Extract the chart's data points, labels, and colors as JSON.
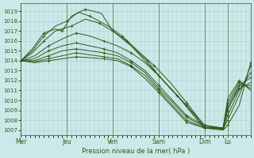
{
  "bg_color": "#cce8e8",
  "grid_color": "#aacfcf",
  "line_color": "#2d5a1b",
  "marker_color": "#2d5a1b",
  "xlabel": "Pression niveau de la mer( hPa )",
  "xlabel_color": "#2d5a1b",
  "tick_color": "#2d5a1b",
  "ylim": [
    1006.5,
    1019.8
  ],
  "yticks": [
    1007,
    1008,
    1009,
    1010,
    1011,
    1012,
    1013,
    1014,
    1015,
    1016,
    1017,
    1018,
    1019
  ],
  "xtick_labels": [
    "Mer",
    "Jeu",
    "Ven",
    "Sam",
    "Dim",
    "Lu"
  ],
  "xtick_positions": [
    0,
    0.2,
    0.4,
    0.6,
    0.8,
    0.9
  ],
  "series": [
    {
      "x": [
        0.0,
        0.05,
        0.1,
        0.15,
        0.18,
        0.22,
        0.28,
        0.35,
        0.4,
        0.48,
        0.55,
        0.6,
        0.68,
        0.75,
        0.8,
        0.88,
        0.9,
        0.95,
        1.0
      ],
      "y": [
        1014.0,
        1015.2,
        1016.8,
        1017.2,
        1017.0,
        1018.5,
        1019.2,
        1018.8,
        1017.0,
        1015.5,
        1014.0,
        1012.5,
        1010.5,
        1008.5,
        1007.2,
        1007.0,
        1007.5,
        1009.5,
        1013.8
      ]
    },
    {
      "x": [
        0.0,
        0.05,
        0.1,
        0.15,
        0.2,
        0.25,
        0.3,
        0.38,
        0.44,
        0.5,
        0.58,
        0.65,
        0.72,
        0.78,
        0.8,
        0.88,
        0.9,
        0.95,
        1.0
      ],
      "y": [
        1014.0,
        1015.0,
        1016.5,
        1017.5,
        1018.0,
        1018.9,
        1018.5,
        1017.5,
        1016.5,
        1015.2,
        1013.5,
        1011.8,
        1009.8,
        1008.0,
        1007.2,
        1007.1,
        1008.0,
        1010.5,
        1013.5
      ]
    },
    {
      "x": [
        0.0,
        0.05,
        0.1,
        0.15,
        0.22,
        0.28,
        0.34,
        0.4,
        0.46,
        0.52,
        0.58,
        0.65,
        0.72,
        0.78,
        0.8,
        0.88,
        0.9,
        0.95,
        1.0
      ],
      "y": [
        1014.0,
        1014.8,
        1016.0,
        1017.0,
        1017.5,
        1018.2,
        1017.8,
        1017.0,
        1016.0,
        1014.5,
        1013.0,
        1011.2,
        1009.5,
        1007.8,
        1007.2,
        1007.1,
        1008.5,
        1011.0,
        1012.8
      ]
    },
    {
      "x": [
        0.0,
        0.06,
        0.12,
        0.18,
        0.24,
        0.3,
        0.36,
        0.42,
        0.48,
        0.54,
        0.6,
        0.66,
        0.72,
        0.78,
        0.8,
        0.88,
        0.9,
        0.95,
        1.0
      ],
      "y": [
        1014.0,
        1014.5,
        1015.5,
        1016.2,
        1016.8,
        1016.5,
        1016.0,
        1015.5,
        1014.8,
        1013.8,
        1012.5,
        1011.0,
        1009.5,
        1008.0,
        1007.5,
        1007.2,
        1009.0,
        1011.5,
        1012.3
      ]
    },
    {
      "x": [
        0.0,
        0.06,
        0.12,
        0.18,
        0.24,
        0.3,
        0.36,
        0.42,
        0.48,
        0.54,
        0.6,
        0.66,
        0.72,
        0.8,
        0.88,
        0.9,
        0.95,
        1.0
      ],
      "y": [
        1014.0,
        1014.2,
        1015.0,
        1015.5,
        1015.8,
        1015.5,
        1015.2,
        1014.8,
        1014.0,
        1013.0,
        1011.5,
        1010.0,
        1008.5,
        1007.4,
        1007.2,
        1009.2,
        1011.2,
        1011.8
      ]
    },
    {
      "x": [
        0.0,
        0.06,
        0.12,
        0.18,
        0.24,
        0.3,
        0.36,
        0.42,
        0.48,
        0.54,
        0.6,
        0.66,
        0.72,
        0.8,
        0.88,
        0.9,
        0.95,
        1.0
      ],
      "y": [
        1014.0,
        1014.0,
        1014.5,
        1015.0,
        1015.2,
        1015.0,
        1014.8,
        1014.5,
        1013.8,
        1012.8,
        1011.2,
        1009.8,
        1008.3,
        1007.3,
        1007.2,
        1009.5,
        1011.5,
        1011.5
      ]
    },
    {
      "x": [
        0.0,
        0.06,
        0.12,
        0.18,
        0.24,
        0.3,
        0.36,
        0.42,
        0.48,
        0.54,
        0.6,
        0.66,
        0.72,
        0.8,
        0.88,
        0.9,
        0.95,
        1.0
      ],
      "y": [
        1014.0,
        1013.9,
        1014.2,
        1014.5,
        1014.8,
        1014.6,
        1014.4,
        1014.2,
        1013.5,
        1012.5,
        1011.0,
        1009.5,
        1008.0,
        1007.2,
        1007.2,
        1009.8,
        1011.8,
        1011.2
      ]
    },
    {
      "x": [
        0.0,
        0.06,
        0.12,
        0.18,
        0.24,
        0.3,
        0.36,
        0.42,
        0.48,
        0.54,
        0.6,
        0.66,
        0.72,
        0.8,
        0.88,
        0.9,
        0.95,
        1.0
      ],
      "y": [
        1014.0,
        1013.8,
        1014.0,
        1014.2,
        1014.4,
        1014.3,
        1014.2,
        1014.0,
        1013.4,
        1012.2,
        1010.8,
        1009.3,
        1007.8,
        1007.2,
        1007.2,
        1010.2,
        1012.0,
        1011.0
      ]
    }
  ]
}
